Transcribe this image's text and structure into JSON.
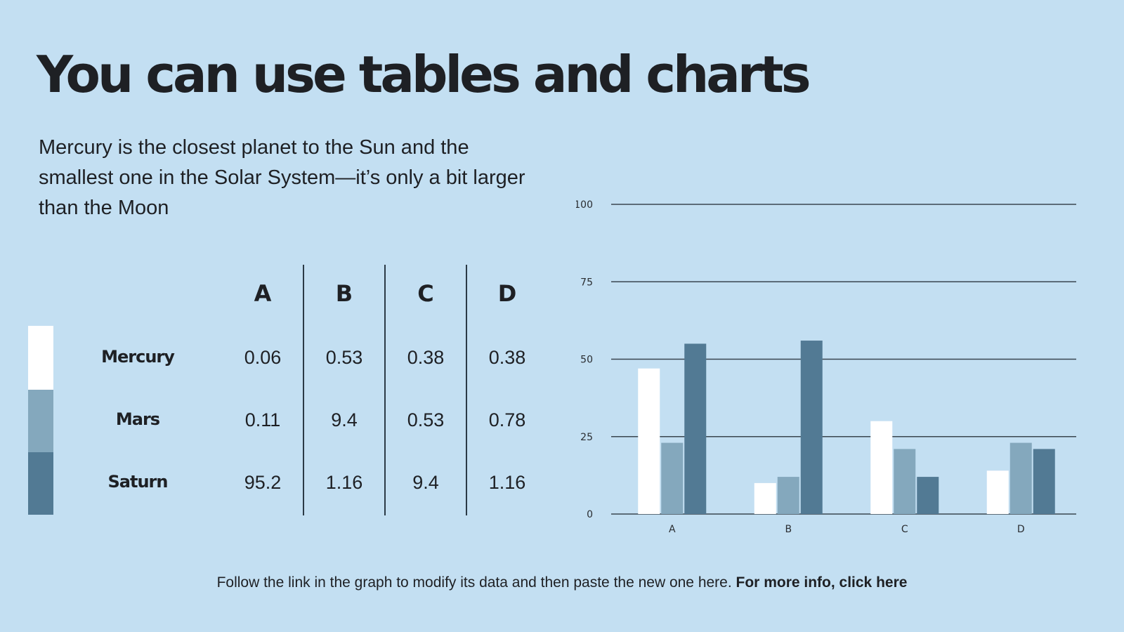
{
  "slide": {
    "title": "You can use tables and charts",
    "subtitle": "Mercury is the closest planet to the Sun and the smallest one in the Solar System—it’s only a bit larger than the Moon",
    "footer_text": "Follow the link in the graph to modify its data and then paste the new one here.",
    "footer_link": "For more info, click here"
  },
  "colors": {
    "background": "#c3dff2",
    "mercury": "#ffffff",
    "mars": "#84a8bd",
    "saturn": "#527a94",
    "text": "#1e2024"
  },
  "table": {
    "columns": [
      "A",
      "B",
      "C",
      "D"
    ],
    "rows": [
      {
        "label": "Mercury",
        "values": [
          "0.06",
          "0.53",
          "0.38",
          "0.38"
        ]
      },
      {
        "label": "Mars",
        "values": [
          "0.11",
          "9.4",
          "0.53",
          "0.78"
        ]
      },
      {
        "label": "Saturn",
        "values": [
          "95.2",
          "1.16",
          "9.4",
          "1.16"
        ]
      }
    ]
  },
  "chart_data": {
    "type": "bar",
    "categories": [
      "A",
      "B",
      "C",
      "D"
    ],
    "series": [
      {
        "values": [
          47,
          10,
          30,
          14
        ],
        "color": "#ffffff"
      },
      {
        "values": [
          23,
          12,
          21,
          23
        ],
        "color": "#84a8bd"
      },
      {
        "values": [
          55,
          56,
          12,
          21
        ],
        "color": "#527a94"
      }
    ],
    "yticks": [
      "0",
      "25",
      "50",
      "75",
      "100"
    ],
    "ylim": [
      0,
      100
    ],
    "grid": true,
    "title": "",
    "xlabel": "",
    "ylabel": ""
  }
}
